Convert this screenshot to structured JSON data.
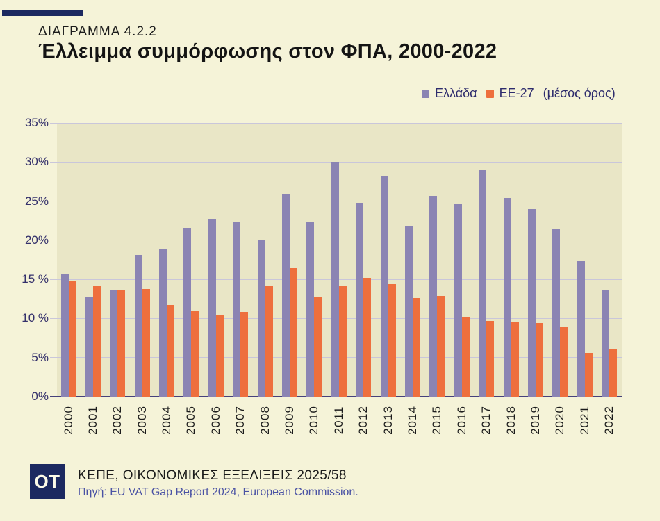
{
  "header": {
    "kicker": "ΔΙΑΓΡΑΜΜΑ 4.2.2",
    "title": "Έλλειμμα συμμόρφωσης στον ΦΠΑ, 2000-2022"
  },
  "legend": {
    "items": [
      {
        "label": "Ελλάδα",
        "suffix": "",
        "color": "#8b84b3"
      },
      {
        "label": "ΕΕ-27",
        "suffix": "(μέσος όρος)",
        "color": "#ee6f3d"
      }
    ]
  },
  "chart_data": {
    "type": "bar",
    "title": "Έλλειμμα συμμόρφωσης στον ΦΠΑ, 2000-2022",
    "categories": [
      "2000",
      "2001",
      "2002",
      "2003",
      "2004",
      "2005",
      "2006",
      "2007",
      "2008",
      "2009",
      "2010",
      "2011",
      "2012",
      "2013",
      "2014",
      "2015",
      "2016",
      "2017",
      "2018",
      "2019",
      "2020",
      "2021",
      "2022"
    ],
    "series": [
      {
        "name": "Ελλάδα",
        "color": "#8b84b3",
        "values": [
          15.6,
          12.8,
          13.7,
          18.1,
          18.8,
          21.6,
          22.7,
          22.3,
          20.1,
          25.9,
          22.4,
          30.0,
          24.8,
          28.2,
          21.8,
          25.7,
          24.7,
          29.0,
          25.4,
          24.0,
          21.5,
          17.4,
          13.7
        ]
      },
      {
        "name": "ΕΕ-27 (μέσος όρος)",
        "color": "#ee6f3d",
        "values": [
          14.8,
          14.2,
          13.7,
          13.8,
          11.7,
          11.0,
          10.4,
          10.8,
          14.1,
          16.4,
          12.7,
          14.1,
          15.2,
          14.4,
          12.6,
          12.9,
          10.2,
          9.7,
          9.5,
          9.4,
          8.9,
          5.6,
          6.0
        ]
      }
    ],
    "xlabel": "",
    "ylabel": "",
    "ylim": [
      0,
      35
    ],
    "ytick_step": 5,
    "ytick_labels": [
      "0%",
      "5%",
      "10 %",
      "15 %",
      "20%",
      "25%",
      "30%",
      "35%"
    ],
    "grid": true,
    "legend_position": "top-right",
    "x_tick_rotation": -90
  },
  "footer": {
    "logo": "OT",
    "line1": "ΚΕΠΕ, ΟΙΚΟΝΟΜΙΚΕΣ ΕΞΕΛΙΞΕΙΣ 2025/58",
    "line2": "Πηγή:  EU VAT Gap Report 2024, European Commission."
  },
  "colors": {
    "page_bg": "#f5f3d8",
    "plot_bg": "#e9e6c6",
    "grid": "#c9c6da",
    "axis": "#46417b",
    "greece": "#8b84b3",
    "eu27": "#ee6f3d",
    "accent_navy": "#1c2960",
    "legend_text": "#2e2c6d",
    "source_text": "#4a52a4"
  }
}
